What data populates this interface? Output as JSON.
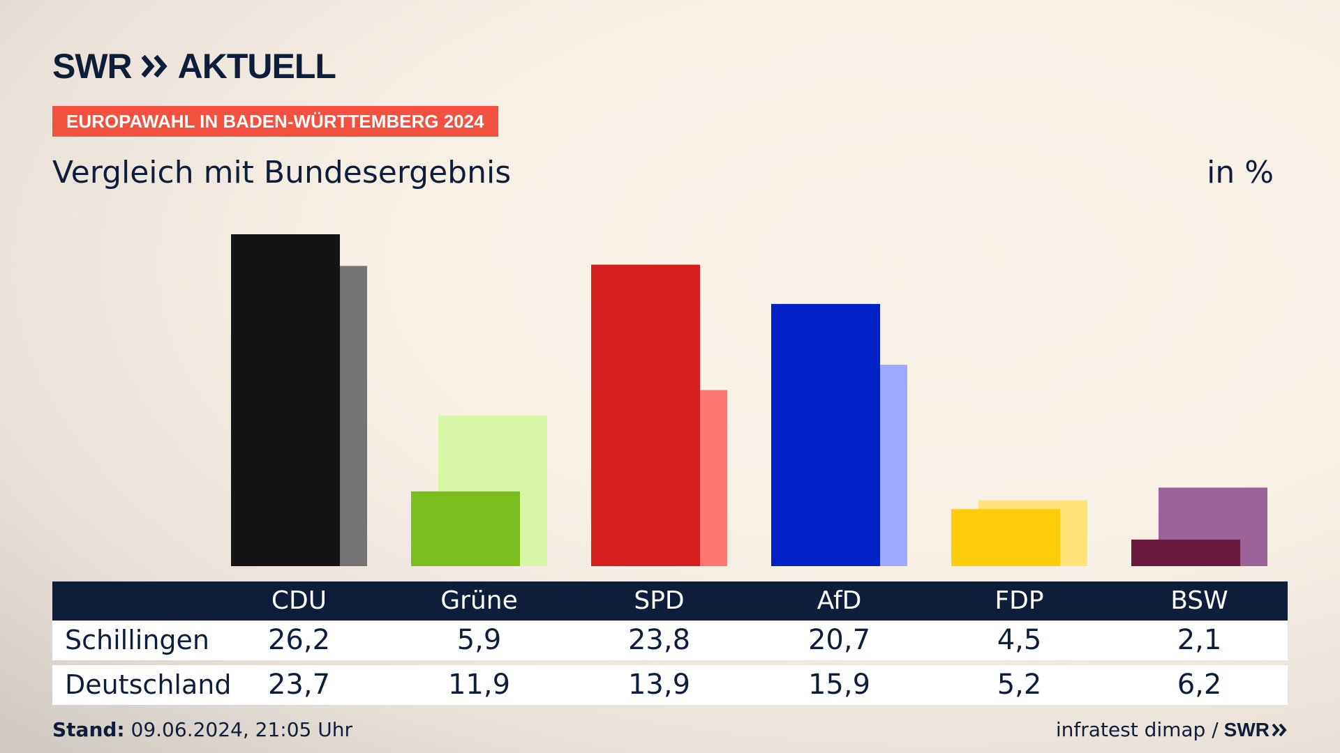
{
  "brand": {
    "logo_left": "SWR",
    "logo_right": "AKTUELL",
    "logo_icon": "double-chevron-right-icon"
  },
  "badge": "EUROPAWAHL IN BADEN-WÜRTTEMBERG 2024",
  "subtitle": "Vergleich mit Bundesergebnis",
  "unit": "in %",
  "table": {
    "rows": [
      "Schillingen",
      "Deutschland"
    ]
  },
  "footer": {
    "stand_label": "Stand:",
    "stand_value": "09.06.2024, 21:05 Uhr",
    "source": "infratest dimap /",
    "source_logo": "SWR"
  },
  "colors": {
    "navy": "#0e1d3a",
    "badge": "#f3513f"
  },
  "chart_data": {
    "type": "bar",
    "categories": [
      "CDU",
      "Grüne",
      "SPD",
      "AfD",
      "FDP",
      "BSW"
    ],
    "series": [
      {
        "name": "Schillingen",
        "values": [
          26.2,
          5.9,
          23.8,
          20.7,
          4.5,
          2.1
        ],
        "colors": [
          "#141414",
          "#7abd1d",
          "#d51f1f",
          "#0022c7",
          "#ffcd0a",
          "#6a1a3e"
        ]
      },
      {
        "name": "Deutschland",
        "values": [
          23.7,
          11.9,
          13.9,
          15.9,
          5.2,
          6.2
        ],
        "colors": [
          "#737373",
          "#d8f5a8",
          "#ff7672",
          "#9eaafd",
          "#ffe27a",
          "#9b6399"
        ]
      }
    ],
    "ylim": [
      0,
      26.2
    ]
  }
}
